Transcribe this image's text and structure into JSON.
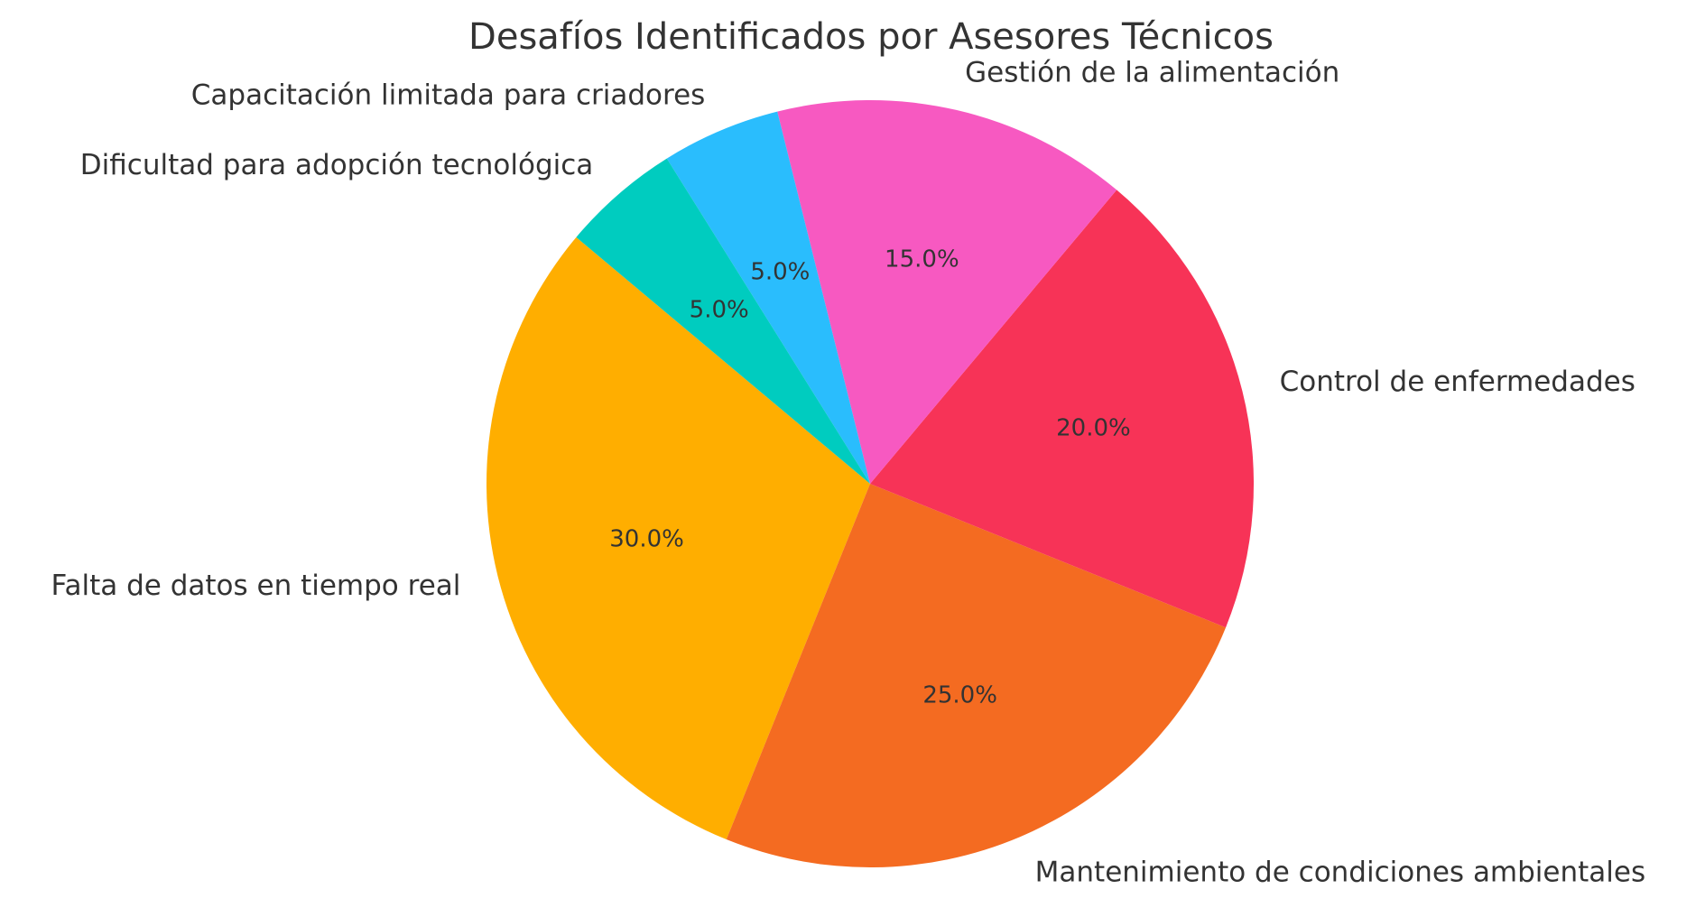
{
  "chart_data": {
    "type": "pie",
    "title": "Desafíos Identificados por Asesores Técnicos",
    "slices": [
      {
        "label": "Falta de datos en tiempo real",
        "value": 30.0,
        "pct_label": "30.0%",
        "color": "#FFAE00"
      },
      {
        "label": "Mantenimiento de condiciones ambientales",
        "value": 25.0,
        "pct_label": "25.0%",
        "color": "#F46B21"
      },
      {
        "label": "Control de enfermedades",
        "value": 20.0,
        "pct_label": "20.0%",
        "color": "#F73357"
      },
      {
        "label": "Gestión de la alimentación",
        "value": 15.0,
        "pct_label": "15.0%",
        "color": "#F759C1"
      },
      {
        "label": "Capacitación limitada para criadores",
        "value": 5.0,
        "pct_label": "5.0%",
        "color": "#2ABDFD"
      },
      {
        "label": "Dificultad para adopción tecnológica",
        "value": 5.0,
        "pct_label": "5.0%",
        "color": "#00CCBF"
      }
    ],
    "start_angle_deg": 140,
    "direction": "counterclockwise",
    "legend": "none"
  }
}
